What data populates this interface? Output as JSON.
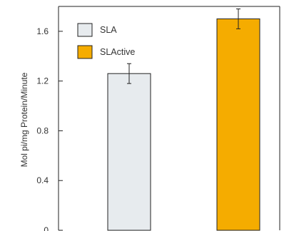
{
  "chart_data": {
    "type": "bar",
    "title": "",
    "xlabel": "",
    "ylabel": "Mol pi/mg Protein/Minute",
    "ylim": [
      0,
      1.8
    ],
    "yticks": [
      0,
      0.4,
      0.8,
      1.2,
      1.6
    ],
    "ytick_labels": [
      "0",
      "0.4",
      "0.8",
      "1.2",
      "1.6"
    ],
    "grid": false,
    "legend_position": "top-left",
    "categories": [
      "SLA",
      "SLActive"
    ],
    "values": [
      1.26,
      1.7
    ],
    "errors": [
      0.08,
      0.08
    ],
    "colors": [
      "#e7ebee",
      "#f5ac00"
    ],
    "legend": [
      {
        "label": "SLA",
        "color": "#e7ebee"
      },
      {
        "label": "SLActive",
        "color": "#f5ac00"
      }
    ]
  }
}
